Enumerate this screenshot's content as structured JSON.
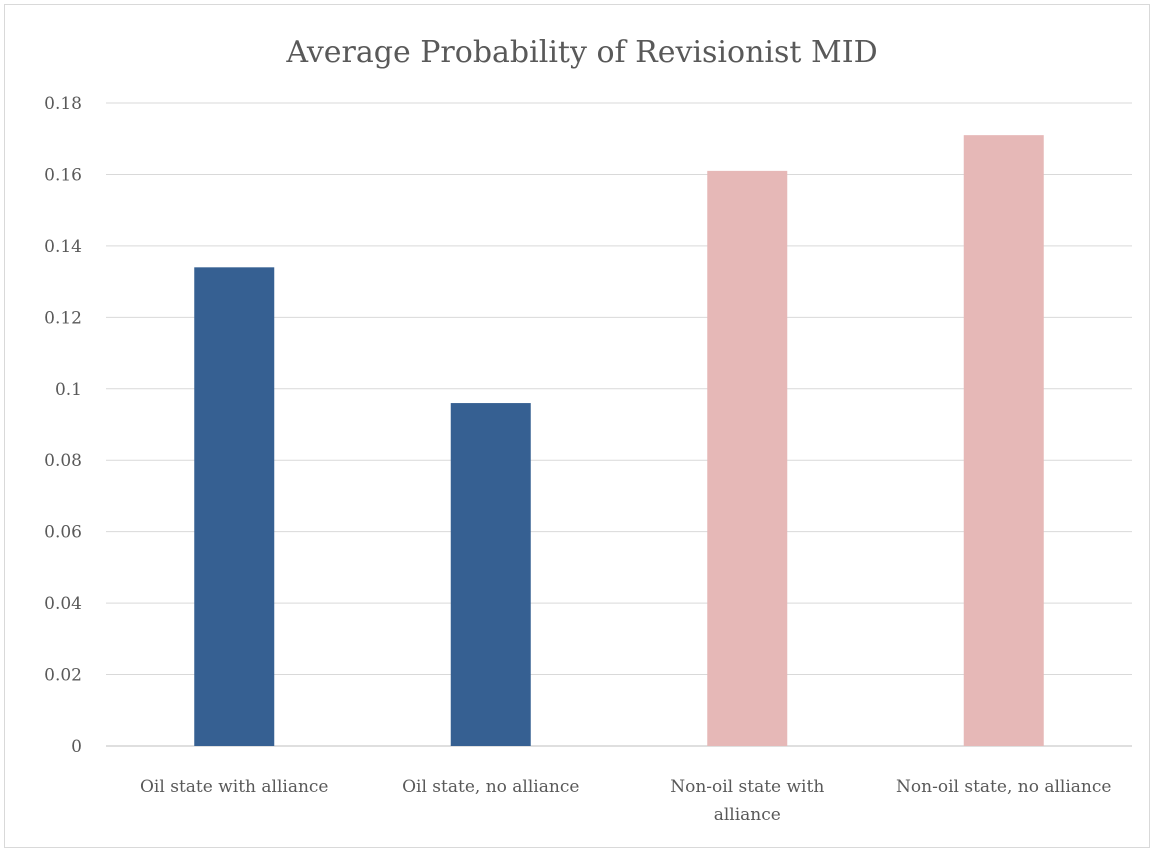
{
  "chart_data": {
    "type": "bar",
    "title": "Average Probability of Revisionist MID",
    "xlabel": "",
    "ylabel": "",
    "categories": [
      [
        "Oil state with alliance"
      ],
      [
        "Oil state, no alliance"
      ],
      [
        "Non-oil state with",
        "alliance"
      ],
      [
        "Non-oil state, no alliance"
      ]
    ],
    "values": [
      0.134,
      0.096,
      0.161,
      0.171
    ],
    "bar_colors": [
      "#366092",
      "#366092",
      "#e6b8b7",
      "#e6b8b7"
    ],
    "ylim": [
      0,
      0.18
    ],
    "yticks": [
      "0",
      "0.02",
      "0.04",
      "0.06",
      "0.08",
      "0.1",
      "0.12",
      "0.14",
      "0.16",
      "0.18"
    ],
    "grid": true,
    "legend": "none"
  }
}
